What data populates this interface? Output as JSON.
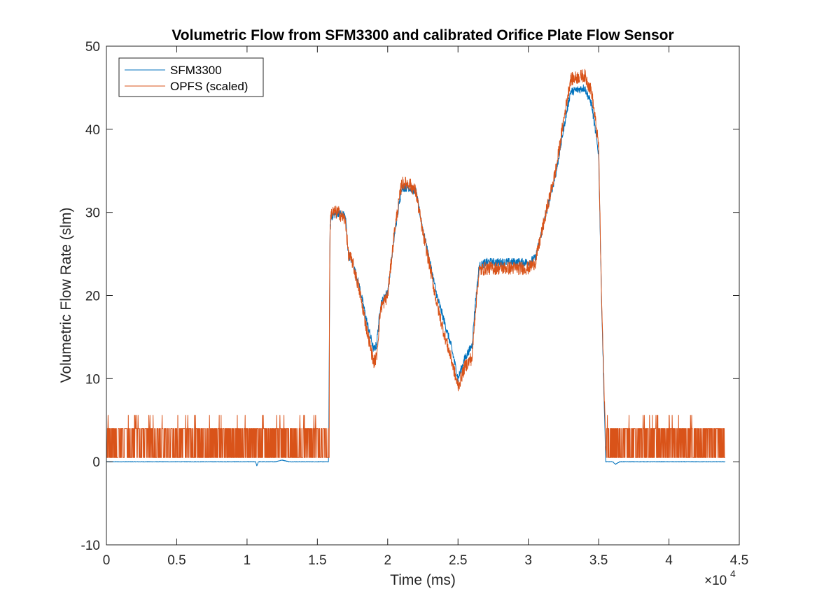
{
  "chart_data": {
    "type": "line",
    "title": "Volumetric Flow from SFM3300 and calibrated Orifice Plate Flow Sensor",
    "xlabel": "Time (ms)",
    "ylabel": "Volumetric Flow Rate (slm)",
    "x_exponent_base": "×10",
    "x_exponent_power": "4",
    "x_multiplier": 10000,
    "xlim": [
      0,
      4.5
    ],
    "ylim": [
      -10,
      50
    ],
    "xticks": [
      0,
      0.5,
      1,
      1.5,
      2,
      2.5,
      3,
      3.5,
      4,
      4.5
    ],
    "xtick_labels": [
      "0",
      "0.5",
      "1",
      "1.5",
      "2",
      "2.5",
      "3",
      "3.5",
      "4",
      "4.5"
    ],
    "yticks": [
      -10,
      0,
      10,
      20,
      30,
      40,
      50
    ],
    "ytick_labels": [
      "-10",
      "0",
      "10",
      "20",
      "30",
      "40",
      "50"
    ],
    "grid": false,
    "legend_position": "top-left",
    "series": [
      {
        "name": "SFM3300",
        "color": "#0072BD",
        "x": [
          0,
          0.5,
          1.0,
          1.06,
          1.07,
          1.08,
          1.2,
          1.25,
          1.3,
          1.58,
          1.59,
          1.6,
          1.65,
          1.7,
          1.72,
          1.75,
          1.8,
          1.85,
          1.9,
          1.92,
          1.95,
          2.0,
          2.05,
          2.1,
          2.15,
          2.2,
          2.25,
          2.3,
          2.35,
          2.4,
          2.45,
          2.5,
          2.55,
          2.6,
          2.62,
          2.65,
          2.7,
          3.0,
          3.05,
          3.1,
          3.2,
          3.25,
          3.3,
          3.4,
          3.45,
          3.5,
          3.52,
          3.55,
          3.57,
          3.6,
          3.62,
          3.65,
          4.0,
          4.4
        ],
        "y": [
          0.0,
          0.0,
          0.0,
          0.0,
          -0.5,
          0.0,
          0.0,
          0.2,
          0.0,
          0.0,
          28.0,
          29.5,
          30.0,
          29.5,
          25.0,
          24.0,
          21.0,
          17.0,
          13.5,
          14.0,
          19.0,
          20.5,
          27.5,
          33.0,
          33.0,
          32.5,
          28.0,
          24.0,
          20.0,
          17.0,
          14.0,
          10.0,
          12.5,
          14.0,
          18.5,
          23.5,
          24.0,
          24.0,
          24.5,
          28.0,
          35.0,
          40.0,
          44.5,
          45.0,
          43.0,
          37.0,
          20.0,
          0.0,
          0.0,
          0.0,
          -0.3,
          0.0,
          0.0,
          0.0
        ],
        "noise_amplitude": 0.5
      },
      {
        "name": "OPFS (scaled)",
        "color": "#D95319",
        "x": [
          0,
          1.58,
          1.59,
          1.6,
          1.65,
          1.7,
          1.72,
          1.75,
          1.8,
          1.85,
          1.9,
          1.92,
          1.95,
          2.0,
          2.05,
          2.1,
          2.15,
          2.2,
          2.25,
          2.3,
          2.35,
          2.4,
          2.45,
          2.5,
          2.55,
          2.6,
          2.62,
          2.65,
          2.7,
          3.0,
          3.05,
          3.1,
          3.2,
          3.25,
          3.3,
          3.4,
          3.45,
          3.5,
          3.52,
          3.55,
          4.4
        ],
        "y": [
          2.2,
          2.2,
          28.5,
          30.0,
          30.0,
          29.0,
          25.0,
          24.0,
          20.5,
          16.0,
          12.0,
          12.5,
          18.5,
          20.0,
          28.0,
          33.5,
          33.5,
          32.5,
          27.5,
          23.5,
          19.0,
          15.5,
          12.5,
          9.0,
          11.5,
          12.5,
          17.5,
          23.0,
          23.3,
          23.3,
          24.0,
          28.0,
          35.5,
          41.0,
          46.0,
          46.5,
          44.5,
          38.0,
          20.0,
          2.2,
          2.2
        ],
        "noise_amplitude": 0.8,
        "baseline_band": [
          0.5,
          4.0
        ],
        "baseline_spikes": 5.6
      }
    ]
  }
}
